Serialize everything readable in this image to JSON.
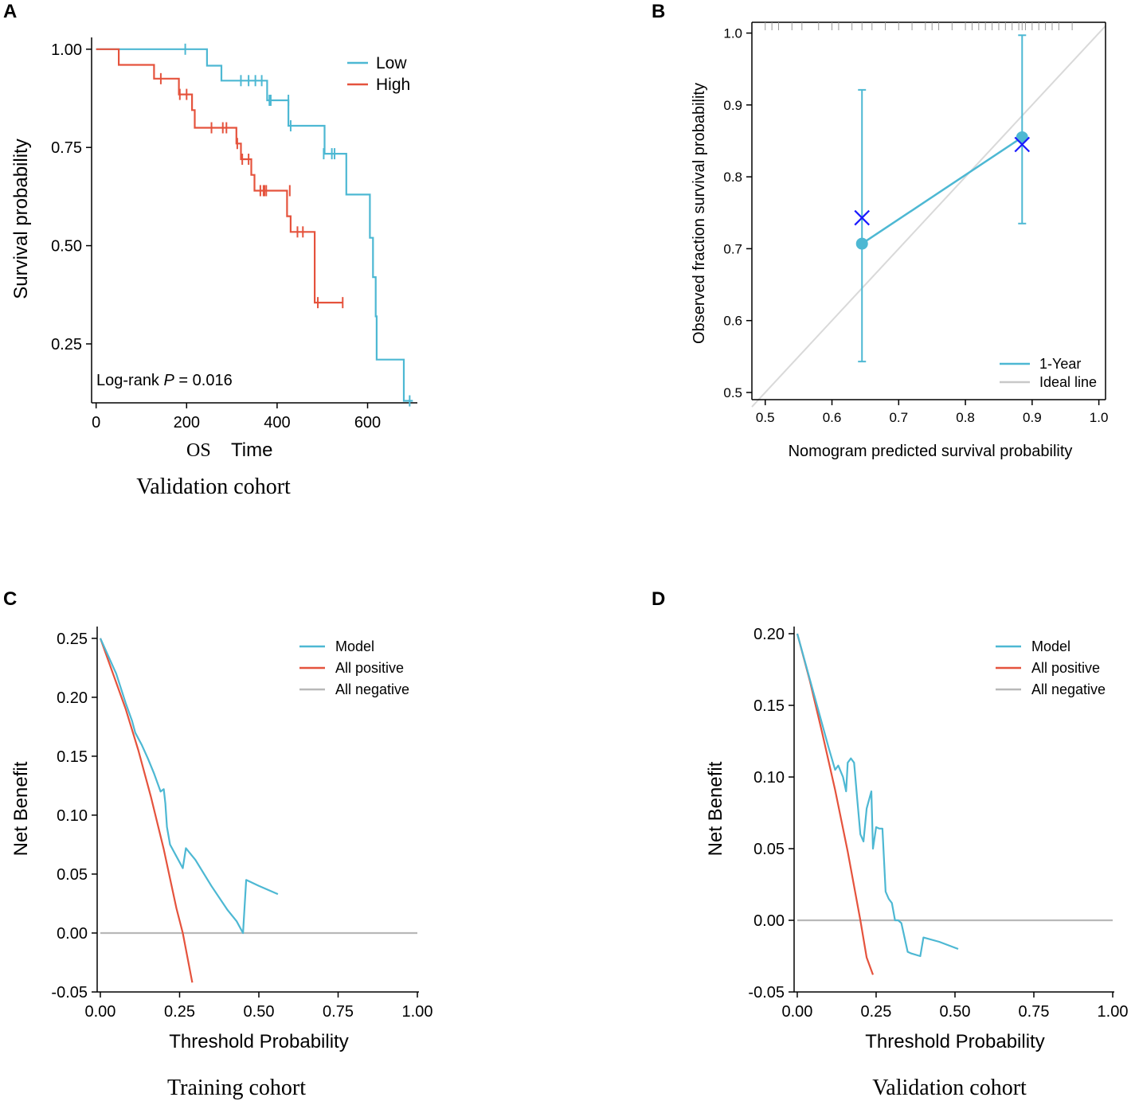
{
  "colors": {
    "low": "#4db8d3",
    "high": "#e5533d",
    "grey": "#b8b8b8",
    "ideal": "#d9d9d9",
    "cross": "#1a1aff"
  },
  "chart_data": [
    {
      "id": "A",
      "panel_label": "A",
      "type": "line",
      "title": "",
      "xlabel_prefix": "OS",
      "xlabel": "Time",
      "ylabel": "Survival probability",
      "caption": "Validation cohort",
      "xlim": [
        -10,
        710
      ],
      "ylim": [
        0.1,
        1.03
      ],
      "xticks": [
        0,
        200,
        400,
        600
      ],
      "xtick_labels": [
        "0",
        "200",
        "400",
        "600"
      ],
      "yticks": [
        0.25,
        0.5,
        0.75,
        1.0
      ],
      "ytick_labels": [
        "0.25",
        "0.50",
        "0.75",
        "1.00"
      ],
      "annotation": {
        "prefix": "Log-rank ",
        "p": "P",
        "suffix": " = 0.016"
      },
      "legend_position": "top-right",
      "series": [
        {
          "name": "Low",
          "color_key": "low",
          "steps": [
            [
              0,
              1.0
            ],
            [
              245,
              1.0
            ],
            [
              245,
              0.958
            ],
            [
              277,
              0.958
            ],
            [
              277,
              0.92
            ],
            [
              378,
              0.92
            ],
            [
              378,
              0.87
            ],
            [
              425,
              0.87
            ],
            [
              425,
              0.805
            ],
            [
              505,
              0.805
            ],
            [
              505,
              0.734
            ],
            [
              553,
              0.734
            ],
            [
              553,
              0.63
            ],
            [
              605,
              0.63
            ],
            [
              605,
              0.52
            ],
            [
              612,
              0.52
            ],
            [
              612,
              0.42
            ],
            [
              618,
              0.42
            ],
            [
              618,
              0.32
            ],
            [
              620,
              0.32
            ],
            [
              620,
              0.21
            ],
            [
              680,
              0.21
            ],
            [
              680,
              0.105
            ],
            [
              700,
              0.105
            ]
          ],
          "censor": [
            [
              197,
              1.0
            ],
            [
              320,
              0.92
            ],
            [
              337,
              0.92
            ],
            [
              352,
              0.92
            ],
            [
              366,
              0.92
            ],
            [
              383,
              0.87
            ],
            [
              386,
              0.87
            ],
            [
              425,
              0.87
            ],
            [
              430,
              0.805
            ],
            [
              503,
              0.734
            ],
            [
              521,
              0.734
            ],
            [
              527,
              0.734
            ],
            [
              693,
              0.105
            ]
          ]
        },
        {
          "name": "High",
          "color_key": "high",
          "steps": [
            [
              0,
              1.0
            ],
            [
              50,
              1.0
            ],
            [
              50,
              0.96
            ],
            [
              128,
              0.96
            ],
            [
              128,
              0.925
            ],
            [
              183,
              0.925
            ],
            [
              183,
              0.885
            ],
            [
              212,
              0.885
            ],
            [
              212,
              0.845
            ],
            [
              218,
              0.845
            ],
            [
              218,
              0.8
            ],
            [
              310,
              0.8
            ],
            [
              310,
              0.76
            ],
            [
              320,
              0.76
            ],
            [
              320,
              0.72
            ],
            [
              343,
              0.72
            ],
            [
              343,
              0.68
            ],
            [
              350,
              0.68
            ],
            [
              350,
              0.64
            ],
            [
              422,
              0.64
            ],
            [
              422,
              0.575
            ],
            [
              430,
              0.575
            ],
            [
              430,
              0.535
            ],
            [
              483,
              0.535
            ],
            [
              483,
              0.355
            ],
            [
              545,
              0.355
            ]
          ],
          "censor": [
            [
              143,
              0.925
            ],
            [
              185,
              0.885
            ],
            [
              200,
              0.885
            ],
            [
              255,
              0.8
            ],
            [
              280,
              0.8
            ],
            [
              288,
              0.8
            ],
            [
              312,
              0.76
            ],
            [
              323,
              0.72
            ],
            [
              337,
              0.72
            ],
            [
              363,
              0.64
            ],
            [
              370,
              0.64
            ],
            [
              372,
              0.64
            ],
            [
              376,
              0.64
            ],
            [
              428,
              0.64
            ],
            [
              445,
              0.535
            ],
            [
              457,
              0.535
            ],
            [
              490,
              0.355
            ],
            [
              545,
              0.355
            ]
          ]
        }
      ]
    },
    {
      "id": "B",
      "panel_label": "B",
      "type": "scatter",
      "title": "",
      "xlabel": "Nomogram predicted survival probability",
      "ylabel": "Observed fraction survival probability",
      "xlim": [
        0.48,
        1.01
      ],
      "ylim": [
        0.49,
        1.015
      ],
      "xticks": [
        0.5,
        0.6,
        0.7,
        0.8,
        0.9,
        1.0
      ],
      "xtick_labels": [
        "0.5",
        "0.6",
        "0.7",
        "0.8",
        "0.9",
        "1.0"
      ],
      "yticks": [
        0.5,
        0.6,
        0.7,
        0.8,
        0.9,
        1.0
      ],
      "ytick_labels": [
        "0.5",
        "0.6",
        "0.7",
        "0.8",
        "0.9",
        "1.0"
      ],
      "legend_position": "bottom-right",
      "legend": [
        "1-Year",
        "Ideal line"
      ],
      "calibration": {
        "x": [
          0.645,
          0.885
        ],
        "y": [
          0.707,
          0.855
        ],
        "lower": [
          0.543,
          0.735
        ],
        "upper": [
          0.921,
          0.997
        ]
      },
      "kaplan_meier_estimate": {
        "x": [
          0.645,
          0.885
        ],
        "y": [
          0.743,
          0.845
        ]
      },
      "ideal_line": [
        [
          0.48,
          0.48
        ],
        [
          1.01,
          1.01
        ]
      ],
      "rug": [
        0.5,
        0.51,
        0.52,
        0.54,
        0.555,
        0.58,
        0.6,
        0.61,
        0.63,
        0.645,
        0.66,
        0.68,
        0.7,
        0.72,
        0.74,
        0.75,
        0.76,
        0.78,
        0.8,
        0.81,
        0.82,
        0.83,
        0.84,
        0.85,
        0.86,
        0.87,
        0.88,
        0.885,
        0.89,
        0.9,
        0.91,
        0.92,
        0.93,
        0.94,
        0.96
      ]
    },
    {
      "id": "C",
      "panel_label": "C",
      "type": "line",
      "title": "",
      "xlabel": "Threshold Probability",
      "ylabel": "Net Benefit",
      "caption": "Training cohort",
      "xlim": [
        -0.01,
        1.005
      ],
      "ylim": [
        -0.05,
        0.26
      ],
      "xticks": [
        0,
        0.25,
        0.5,
        0.75,
        1.0
      ],
      "xtick_labels": [
        "0.00",
        "0.25",
        "0.50",
        "0.75",
        "1.00"
      ],
      "yticks": [
        -0.05,
        0,
        0.05,
        0.1,
        0.15,
        0.2,
        0.25
      ],
      "ytick_labels": [
        "-0.05",
        "0.00",
        "0.05",
        "0.10",
        "0.15",
        "0.20",
        "0.25"
      ],
      "legend_position": "top-right",
      "series": [
        {
          "name": "Model",
          "color_key": "low",
          "x": [
            0.0,
            0.05,
            0.08,
            0.1,
            0.11,
            0.12,
            0.13,
            0.15,
            0.17,
            0.19,
            0.2,
            0.205,
            0.21,
            0.22,
            0.24,
            0.26,
            0.27,
            0.3,
            0.35,
            0.4,
            0.43,
            0.45,
            0.46,
            0.5,
            0.56
          ],
          "y": [
            0.25,
            0.22,
            0.195,
            0.18,
            0.17,
            0.165,
            0.16,
            0.148,
            0.135,
            0.12,
            0.122,
            0.11,
            0.09,
            0.075,
            0.065,
            0.055,
            0.072,
            0.062,
            0.04,
            0.02,
            0.01,
            0.0,
            0.045,
            0.04,
            0.033
          ]
        },
        {
          "name": "All positive",
          "color_key": "high",
          "x": [
            0.0,
            0.04,
            0.08,
            0.12,
            0.16,
            0.2,
            0.24,
            0.26,
            0.29
          ],
          "y": [
            0.25,
            0.22,
            0.19,
            0.155,
            0.115,
            0.071,
            0.021,
            0.0,
            -0.042
          ]
        },
        {
          "name": "All negative",
          "color_key": "grey",
          "x": [
            0.0,
            1.0
          ],
          "y": [
            0.0,
            0.0
          ]
        }
      ]
    },
    {
      "id": "D",
      "panel_label": "D",
      "type": "line",
      "title": "",
      "xlabel": "Threshold Probability",
      "ylabel": "Net Benefit",
      "caption": "Validation cohort",
      "xlim": [
        -0.01,
        1.005
      ],
      "ylim": [
        -0.05,
        0.205
      ],
      "xticks": [
        0,
        0.25,
        0.5,
        0.75,
        1.0
      ],
      "xtick_labels": [
        "0.00",
        "0.25",
        "0.50",
        "0.75",
        "1.00"
      ],
      "yticks": [
        -0.05,
        0,
        0.05,
        0.1,
        0.15,
        0.2
      ],
      "ytick_labels": [
        "-0.05",
        "0.00",
        "0.05",
        "0.10",
        "0.15",
        "0.20"
      ],
      "legend_position": "top-right",
      "series": [
        {
          "name": "Model",
          "color_key": "low",
          "x": [
            0.0,
            0.05,
            0.1,
            0.12,
            0.13,
            0.145,
            0.155,
            0.16,
            0.17,
            0.18,
            0.19,
            0.2,
            0.21,
            0.22,
            0.235,
            0.24,
            0.25,
            0.26,
            0.27,
            0.28,
            0.29,
            0.3,
            0.31,
            0.32,
            0.33,
            0.35,
            0.36,
            0.39,
            0.4,
            0.45,
            0.51
          ],
          "y": [
            0.2,
            0.16,
            0.12,
            0.105,
            0.108,
            0.1,
            0.09,
            0.11,
            0.113,
            0.11,
            0.085,
            0.06,
            0.055,
            0.078,
            0.09,
            0.05,
            0.065,
            0.064,
            0.064,
            0.02,
            0.015,
            0.012,
            0.0,
            0.0,
            -0.002,
            -0.022,
            -0.023,
            -0.025,
            -0.012,
            -0.015,
            -0.02
          ]
        },
        {
          "name": "All positive",
          "color_key": "high",
          "x": [
            0.0,
            0.04,
            0.08,
            0.12,
            0.16,
            0.2,
            0.22,
            0.24
          ],
          "y": [
            0.2,
            0.167,
            0.13,
            0.091,
            0.048,
            0.0,
            -0.026,
            -0.038
          ]
        },
        {
          "name": "All negative",
          "color_key": "grey",
          "x": [
            0.0,
            1.0
          ],
          "y": [
            0.0,
            0.0
          ]
        }
      ]
    }
  ]
}
